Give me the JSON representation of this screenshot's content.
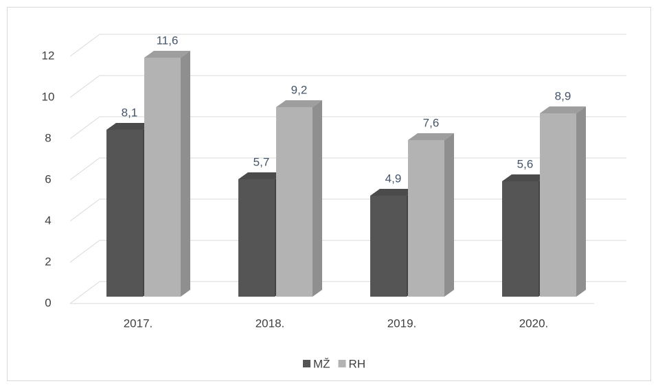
{
  "chart_data": {
    "type": "bar3d",
    "categories": [
      "2017.",
      "2018.",
      "2019.",
      "2020."
    ],
    "series": [
      {
        "name": "MŽ",
        "color": "#555555",
        "values": [
          8.1,
          5.7,
          4.9,
          5.6
        ],
        "value_labels": [
          "8,1",
          "5,7",
          "4,9",
          "5,6"
        ]
      },
      {
        "name": "RH",
        "color": "#b3b3b3",
        "values": [
          11.6,
          9.2,
          7.6,
          8.9
        ],
        "value_labels": [
          "11,6",
          "9,2",
          "7,6",
          "8,9"
        ]
      }
    ],
    "ylim": [
      0,
      12
    ],
    "yticks": [
      0,
      2,
      4,
      6,
      8,
      10,
      12
    ],
    "grid": true,
    "legend": "bottom"
  }
}
